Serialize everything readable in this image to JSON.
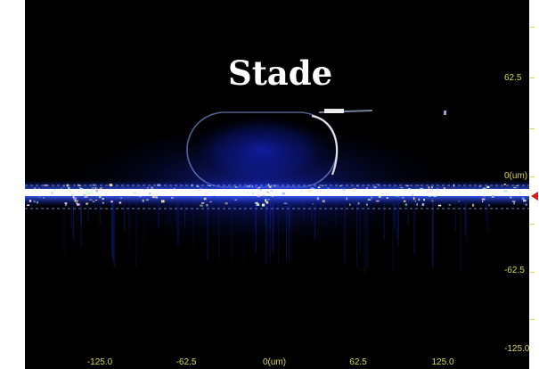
{
  "title": "Stade",
  "axes": {
    "x_ticks": [
      "-125.0",
      "-62.5",
      "0(um)",
      "62.5",
      "125.0"
    ],
    "y_ticks": [
      "62.5",
      "0(um)",
      "-62.5",
      "-125.0"
    ]
  },
  "colors": {
    "background": "#000000",
    "tick_text": "#d8d84a",
    "glow": "#2a3cff",
    "marker": "#d11a1a"
  }
}
